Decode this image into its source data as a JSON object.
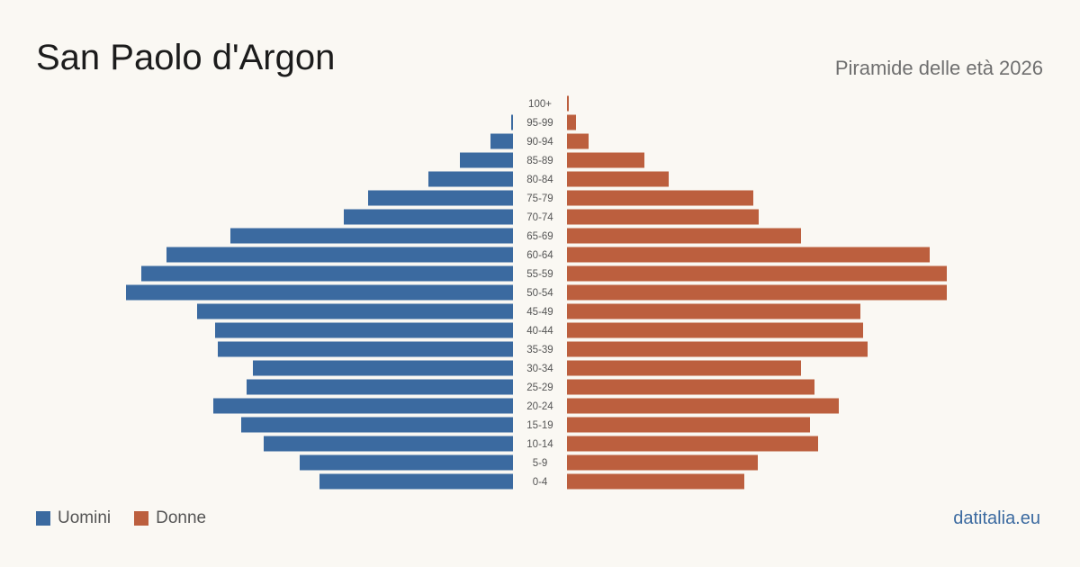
{
  "header": {
    "title": "San Paolo d'Argon",
    "subtitle": "Piramide delle età 2026"
  },
  "legend": {
    "men_label": "Uomini",
    "women_label": "Donne"
  },
  "footer": {
    "brand": "datitalia.eu"
  },
  "colors": {
    "men": "#3b6aa0",
    "women": "#bc5f3e",
    "background": "#faf8f3"
  },
  "chart_data": {
    "type": "bar",
    "orientation": "horizontal-pyramid",
    "categories": [
      "0-4",
      "5-9",
      "10-14",
      "15-19",
      "20-24",
      "25-29",
      "30-34",
      "35-39",
      "40-44",
      "45-49",
      "50-54",
      "55-59",
      "60-64",
      "65-69",
      "70-74",
      "75-79",
      "80-84",
      "85-89",
      "90-94",
      "95-99",
      "100+"
    ],
    "series": [
      {
        "name": "Uomini",
        "values": [
          215,
          237,
          277,
          302,
          333,
          296,
          289,
          328,
          331,
          351,
          430,
          413,
          385,
          314,
          188,
          161,
          94,
          59,
          25,
          2,
          0
        ]
      },
      {
        "name": "Donne",
        "values": [
          197,
          212,
          279,
          270,
          302,
          275,
          260,
          334,
          329,
          326,
          422,
          422,
          403,
          260,
          213,
          207,
          113,
          86,
          24,
          10,
          2
        ]
      }
    ],
    "xlim": [
      0,
      430
    ]
  }
}
